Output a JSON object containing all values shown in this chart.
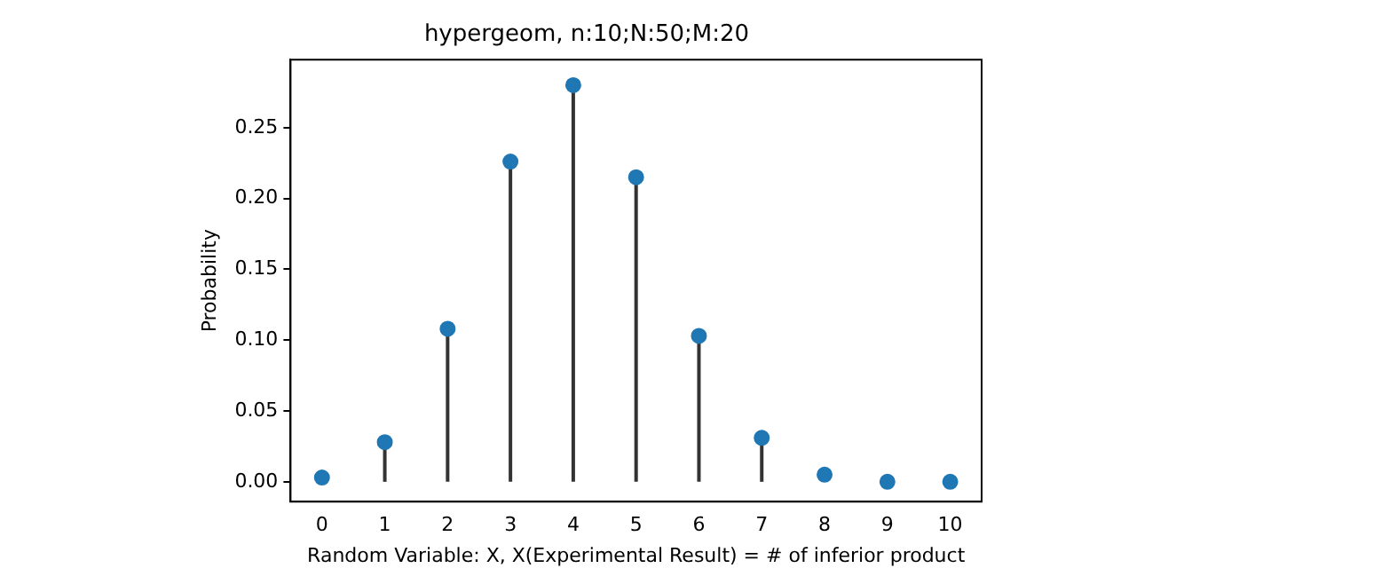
{
  "chart_data": {
    "type": "lollipop",
    "title": "hypergeom, n:10;N:50;M:20",
    "xlabel": "Random Variable: X, X(Experimental Result) = # of inferior product",
    "ylabel": "Probability",
    "x": [
      0,
      1,
      2,
      3,
      4,
      5,
      6,
      7,
      8,
      9,
      10
    ],
    "values": [
      0.003,
      0.028,
      0.108,
      0.226,
      0.28,
      0.215,
      0.103,
      0.031,
      0.005,
      0.0,
      0.0
    ],
    "color": "#1f77b4",
    "marker": "circle",
    "xlim": [
      -0.5,
      10.5
    ],
    "xticks": [
      0,
      1,
      2,
      3,
      4,
      5,
      6,
      7,
      8,
      9,
      10
    ],
    "ylim": [
      -0.014,
      0.298
    ],
    "yticks": [
      {
        "value": 0,
        "label": "0.00"
      },
      {
        "value": 0.05,
        "label": "0.05"
      },
      {
        "value": 0.1,
        "label": "0.10"
      },
      {
        "value": 0.15,
        "label": "0.15"
      },
      {
        "value": 0.2,
        "label": "0.20"
      },
      {
        "value": 0.25,
        "label": "0.25"
      }
    ]
  }
}
